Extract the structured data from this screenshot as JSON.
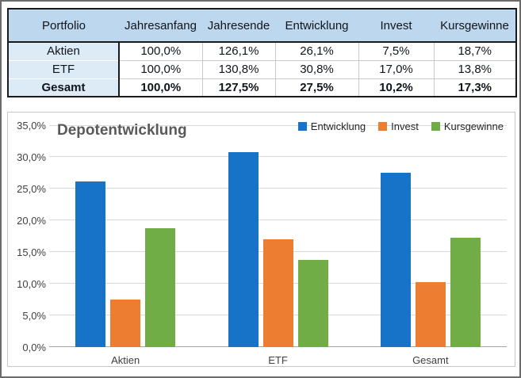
{
  "table": {
    "headers": [
      "Portfolio",
      "Jahresanfang",
      "Jahresende",
      "Entwicklung",
      "Invest",
      "Kursgewinne"
    ],
    "rows": [
      {
        "label": "Aktien",
        "values": [
          "100,0%",
          "126,1%",
          "26,1%",
          "7,5%",
          "18,7%"
        ]
      },
      {
        "label": "ETF",
        "values": [
          "100,0%",
          "130,8%",
          "30,8%",
          "17,0%",
          "13,8%"
        ]
      },
      {
        "label": "Gesamt",
        "values": [
          "100,0%",
          "127,5%",
          "27,5%",
          "10,2%",
          "17,3%"
        ]
      }
    ]
  },
  "chart_data": {
    "type": "bar",
    "title": "Depotentwicklung",
    "categories": [
      "Aktien",
      "ETF",
      "Gesamt"
    ],
    "series": [
      {
        "name": "Entwicklung",
        "color": "#1673C8",
        "values": [
          26.1,
          30.8,
          27.5
        ]
      },
      {
        "name": "Invest",
        "color": "#ED7D31",
        "values": [
          7.5,
          17.0,
          10.2
        ]
      },
      {
        "name": "Kursgewinne",
        "color": "#70AD47",
        "values": [
          18.7,
          13.8,
          17.3
        ]
      }
    ],
    "ylim": [
      0,
      35
    ],
    "ytick_step": 5,
    "ytick_labels": [
      "0,0%",
      "5,0%",
      "10,0%",
      "15,0%",
      "20,0%",
      "25,0%",
      "30,0%",
      "35,0%"
    ],
    "legend_position": "top-right",
    "grid": true
  },
  "colors": {
    "header_bg": "#BDD7EE",
    "row_label_bg": "#DDEBF7",
    "gridline": "#D9D9D9"
  }
}
